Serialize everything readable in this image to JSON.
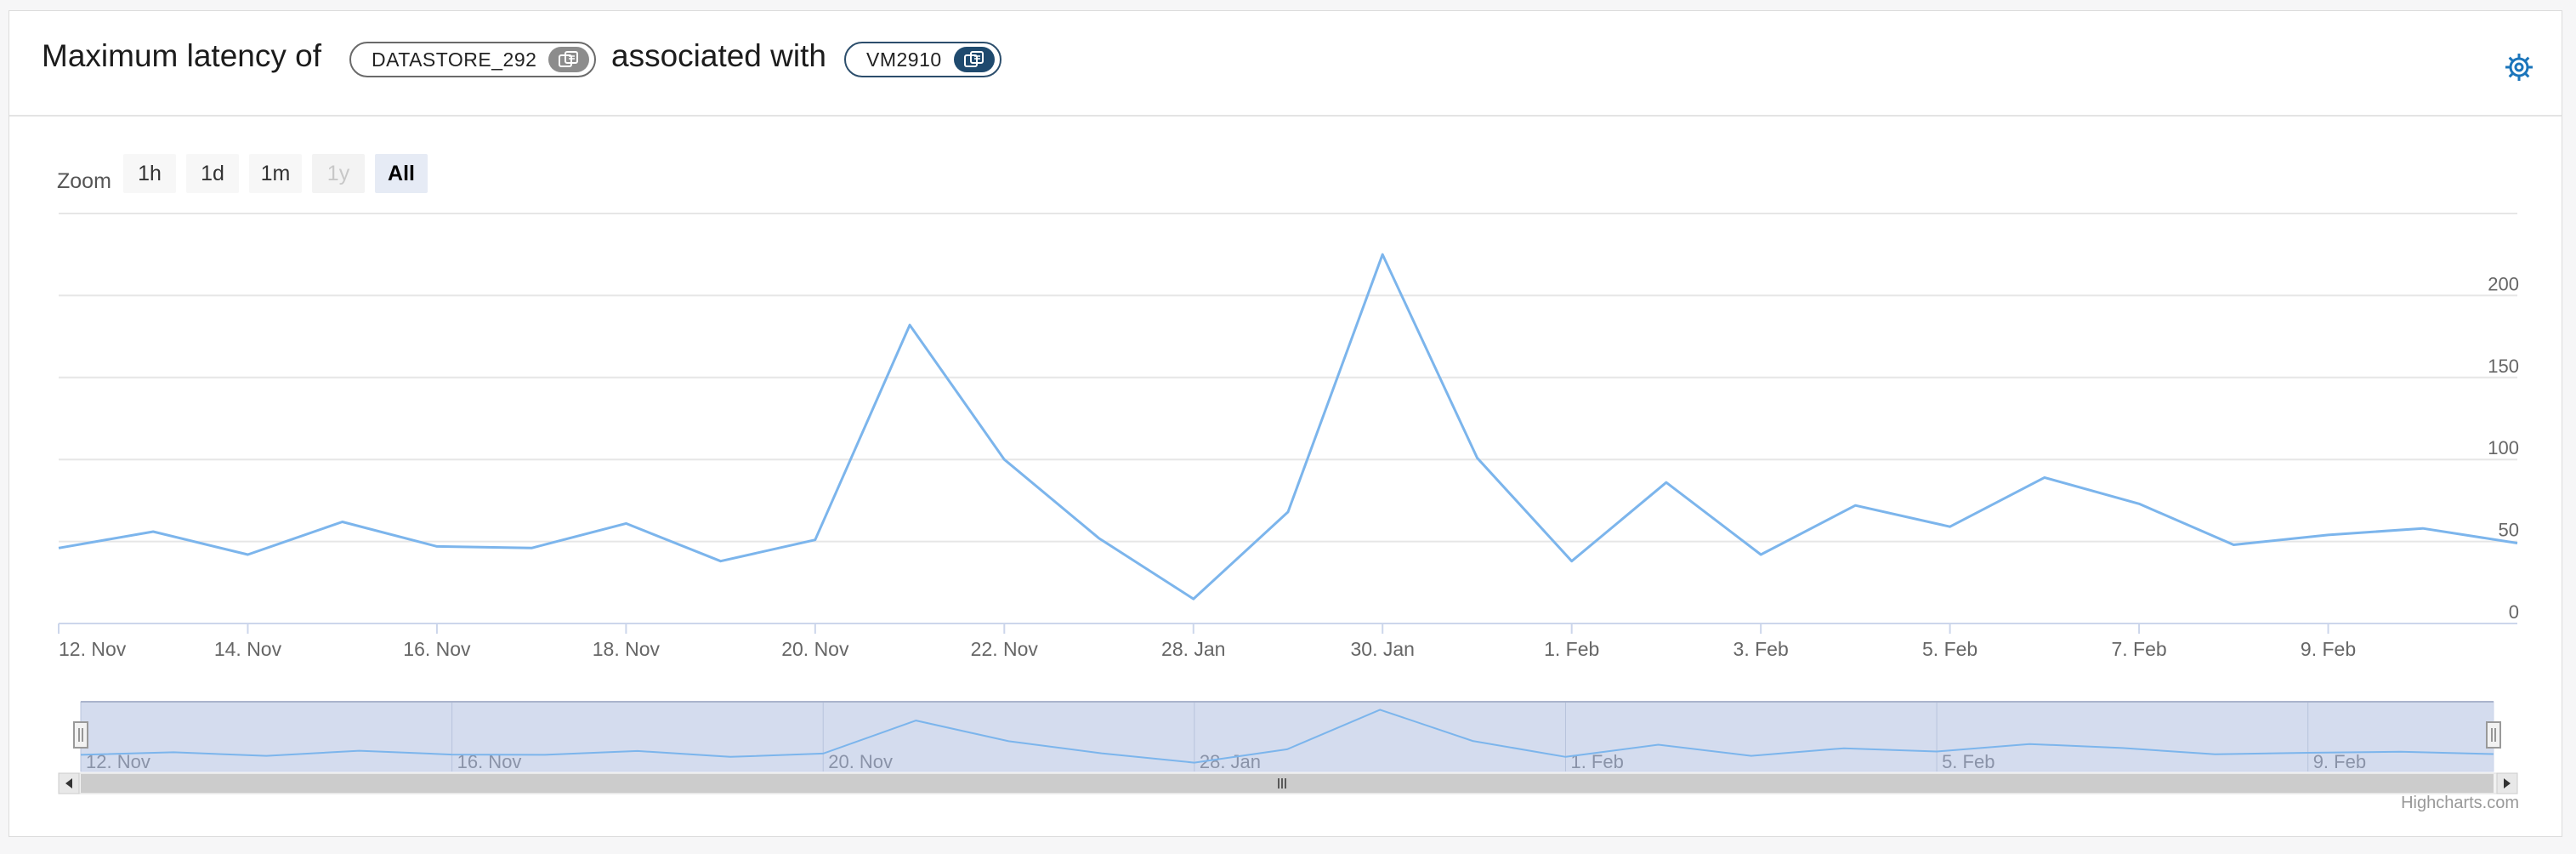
{
  "header": {
    "title_prefix": "Maximum latency of",
    "title_middle": "associated with",
    "datastore_chip": "DATASTORE_292",
    "vm_chip": "VM2910",
    "icons": {
      "chip_action": "copy-icon",
      "settings": "gear-icon"
    }
  },
  "zoom": {
    "label": "Zoom",
    "buttons": [
      {
        "label": "1h",
        "state": "normal"
      },
      {
        "label": "1d",
        "state": "normal"
      },
      {
        "label": "1m",
        "state": "normal"
      },
      {
        "label": "1y",
        "state": "disabled"
      },
      {
        "label": "All",
        "state": "selected"
      }
    ]
  },
  "credit": "Highcharts.com",
  "chart_data": {
    "type": "line",
    "x": [
      "12. Nov",
      "13. Nov",
      "14. Nov",
      "15. Nov",
      "16. Nov",
      "17. Nov",
      "18. Nov",
      "19. Nov",
      "20. Nov",
      "21. Nov",
      "22. Nov",
      "23. Nov",
      "28. Jan",
      "29. Jan",
      "30. Jan",
      "31. Jan",
      "1. Feb",
      "2. Feb",
      "3. Feb",
      "4. Feb",
      "5. Feb",
      "6. Feb",
      "7. Feb",
      "8. Feb",
      "9. Feb",
      "10. Feb",
      "11. Feb"
    ],
    "series": [
      {
        "values": [
          46,
          56,
          42,
          62,
          47,
          46,
          61,
          38,
          51,
          182,
          100,
          52,
          15,
          68,
          225,
          101,
          38,
          86,
          42,
          72,
          59,
          89,
          73,
          48,
          54,
          58,
          49
        ],
        "color": "#7cb5ec"
      }
    ],
    "x_tick_labels": [
      "12. Nov",
      "14. Nov",
      "16. Nov",
      "18. Nov",
      "20. Nov",
      "22. Nov",
      "28. Jan",
      "30. Jan",
      "1. Feb",
      "3. Feb",
      "5. Feb",
      "7. Feb",
      "9. Feb"
    ],
    "y_tick_labels": [
      "0",
      "50",
      "100",
      "150",
      "200"
    ],
    "ylim": [
      0,
      250
    ],
    "y_axis_side": "right",
    "grid": true,
    "navigator": {
      "tick_labels": [
        "12. Nov",
        "16. Nov",
        "20. Nov",
        "28. Jan",
        "1. Feb",
        "5. Feb",
        "9. Feb"
      ]
    }
  },
  "colors": {
    "series": "#7cb5ec",
    "navigator_fill": "#ccd6eb",
    "grid": "#e6e6e6"
  }
}
